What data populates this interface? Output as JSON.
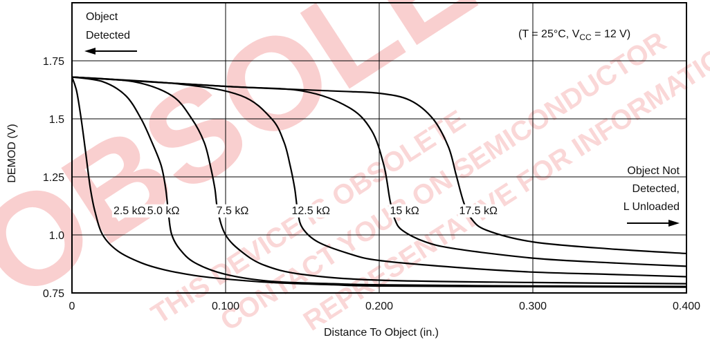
{
  "chart_data": {
    "type": "line",
    "xlabel": "Distance To Object (in.)",
    "ylabel": "DEMOD (V)",
    "xlim": [
      0,
      0.4
    ],
    "ylim": [
      0.75,
      2.0
    ],
    "x_ticks": [
      {
        "value": 0,
        "label": "0"
      },
      {
        "value": 0.1,
        "label": "0.100"
      },
      {
        "value": 0.2,
        "label": "0.200"
      },
      {
        "value": 0.3,
        "label": "0.300"
      },
      {
        "value": 0.4,
        "label": "0.400"
      }
    ],
    "y_ticks": [
      {
        "value": 0.75,
        "label": "0.75"
      },
      {
        "value": 1.0,
        "label": "1.0"
      },
      {
        "value": 1.25,
        "label": "1.25"
      },
      {
        "value": 1.5,
        "label": "1.5"
      },
      {
        "value": 1.75,
        "label": "1.75"
      }
    ],
    "grid": true,
    "annotations": {
      "left_arrow_line1": "Object",
      "left_arrow_line2": "Detected",
      "conditions_prefix": "(T = 25°C, V",
      "conditions_sub": "CC",
      "conditions_suffix": " = 12 V)",
      "right_line1": "Object Not",
      "right_line2": "Detected,",
      "right_line3": "L Unloaded"
    },
    "series": [
      {
        "name": "2.5 kΩ",
        "x": [
          0,
          0.003,
          0.006,
          0.009,
          0.012,
          0.015,
          0.02,
          0.03,
          0.045,
          0.06,
          0.08,
          0.1,
          0.13,
          0.17,
          0.2,
          0.3,
          0.4
        ],
        "y": [
          1.68,
          1.62,
          1.5,
          1.35,
          1.2,
          1.1,
          1.0,
          0.93,
          0.88,
          0.85,
          0.825,
          0.81,
          0.795,
          0.785,
          0.78,
          0.777,
          0.775
        ]
      },
      {
        "name": "5.0 kΩ",
        "x": [
          0,
          0.02,
          0.035,
          0.045,
          0.052,
          0.058,
          0.061,
          0.063,
          0.065,
          0.07,
          0.08,
          0.1,
          0.13,
          0.17,
          0.2,
          0.3,
          0.4
        ],
        "y": [
          1.68,
          1.66,
          1.6,
          1.5,
          1.4,
          1.3,
          1.2,
          1.08,
          1.0,
          0.94,
          0.88,
          0.83,
          0.8,
          0.79,
          0.785,
          0.78,
          0.778
        ]
      },
      {
        "name": "7.5 kΩ",
        "x": [
          0,
          0.04,
          0.065,
          0.078,
          0.086,
          0.09,
          0.093,
          0.095,
          0.1,
          0.11,
          0.125,
          0.15,
          0.2,
          0.3,
          0.4
        ],
        "y": [
          1.68,
          1.66,
          1.6,
          1.5,
          1.4,
          1.3,
          1.2,
          1.1,
          1.0,
          0.93,
          0.87,
          0.83,
          0.805,
          0.795,
          0.79
        ]
      },
      {
        "name": "12.5 kΩ",
        "x": [
          0,
          0.07,
          0.11,
          0.13,
          0.138,
          0.142,
          0.145,
          0.147,
          0.15,
          0.16,
          0.18,
          0.2,
          0.25,
          0.3,
          0.35,
          0.4
        ],
        "y": [
          1.68,
          1.65,
          1.6,
          1.5,
          1.4,
          1.3,
          1.2,
          1.1,
          1.03,
          0.97,
          0.92,
          0.89,
          0.86,
          0.84,
          0.83,
          0.82
        ]
      },
      {
        "name": "15 kΩ",
        "x": [
          0,
          0.1,
          0.15,
          0.18,
          0.195,
          0.203,
          0.207,
          0.21,
          0.215,
          0.23,
          0.25,
          0.3,
          0.35,
          0.4
        ],
        "y": [
          1.68,
          1.64,
          1.62,
          1.55,
          1.45,
          1.3,
          1.15,
          1.07,
          1.02,
          0.97,
          0.94,
          0.9,
          0.88,
          0.865
        ]
      },
      {
        "name": "17.5 kΩ",
        "x": [
          0,
          0.1,
          0.17,
          0.2,
          0.22,
          0.235,
          0.245,
          0.25,
          0.255,
          0.26,
          0.27,
          0.3,
          0.35,
          0.4
        ],
        "y": [
          1.68,
          1.64,
          1.62,
          1.61,
          1.58,
          1.5,
          1.38,
          1.26,
          1.14,
          1.07,
          1.02,
          0.97,
          0.94,
          0.92
        ]
      }
    ]
  },
  "watermark": {
    "big": "OBSOLETE",
    "line1": "THIS DEVICE IS OBSOLETE",
    "line2": "CONTACT YOUR ON SEMICONDUCTOR",
    "line3": "REPRESENTATIVE FOR INFORMATION"
  }
}
